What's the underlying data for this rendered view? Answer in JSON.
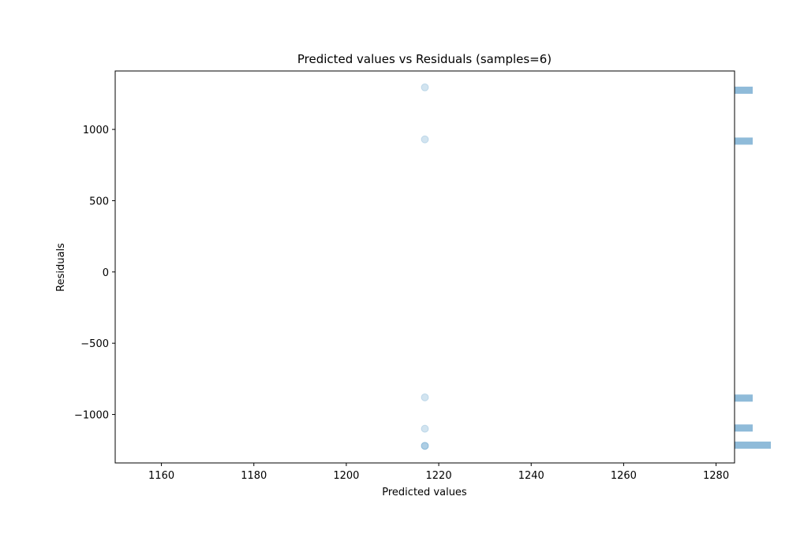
{
  "chart_data": {
    "type": "scatter",
    "title": "Predicted values vs Residuals (samples=6)",
    "xlabel": "Predicted values",
    "ylabel": "Residuals",
    "xlim": [
      1150,
      1284
    ],
    "ylim": [
      -1340,
      1410
    ],
    "xticks": [
      1160,
      1180,
      1200,
      1220,
      1240,
      1260,
      1280
    ],
    "yticks": [
      -1000,
      -500,
      0,
      500,
      1000
    ],
    "ytick_labels": [
      "−1000",
      "−500",
      "0",
      "500",
      "1000"
    ],
    "grid": false,
    "series": [
      {
        "points": [
          {
            "x": 1217,
            "y": 1295
          },
          {
            "x": 1217,
            "y": 930
          },
          {
            "x": 1217,
            "y": -880
          },
          {
            "x": 1217,
            "y": -1100
          },
          {
            "x": 1217,
            "y": -1220
          },
          {
            "x": 1217,
            "y": -1220
          }
        ],
        "color": "#1f77b4",
        "alpha": 0.2
      }
    ],
    "marginal_histogram": {
      "orientation": "horizontal",
      "color": "#1f77b4",
      "alpha": 0.5,
      "bins": [
        {
          "y0": 1250,
          "y1": 1300,
          "count": 1
        },
        {
          "y0": 893,
          "y1": 943,
          "count": 1
        },
        {
          "y0": -910,
          "y1": -860,
          "count": 1
        },
        {
          "y0": -1120,
          "y1": -1070,
          "count": 1
        },
        {
          "y0": -1240,
          "y1": -1190,
          "count": 2
        }
      ]
    }
  }
}
